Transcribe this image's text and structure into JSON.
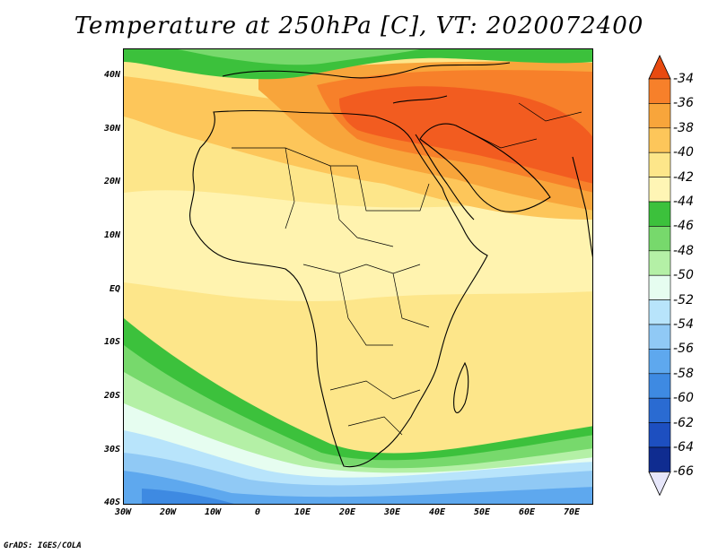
{
  "title": "Temperature at 250hPa [C], VT: 2020072400",
  "credit": "GrADS: IGES/COLA",
  "map": {
    "region": "Africa and Middle East",
    "variable": "temperature_250hPa_C",
    "lat_range": [
      -40,
      45
    ],
    "lon_range": [
      -30,
      75
    ],
    "lat_labels": [
      "40N",
      "30N",
      "20N",
      "10N",
      "EQ",
      "10S",
      "20S",
      "30S",
      "40S"
    ],
    "lon_labels": [
      "30W",
      "20W",
      "10W",
      "0",
      "10E",
      "20E",
      "30E",
      "40E",
      "50E",
      "60E",
      "70E"
    ]
  },
  "colorbar": {
    "levels": [
      "-34",
      "-36",
      "-38",
      "-40",
      "-42",
      "-44",
      "-46",
      "-48",
      "-50",
      "-52",
      "-54",
      "-56",
      "-58",
      "-60",
      "-62",
      "-64",
      "-66"
    ],
    "colors": [
      "#f0501e",
      "#f7802a",
      "#f8a53b",
      "#fdc65a",
      "#fde68a",
      "#fff5b5",
      "#3cc13c",
      "#77d96c",
      "#b4f0a6",
      "#e6fdf0",
      "#b8e4fb",
      "#90c9f5",
      "#5ea8ee",
      "#3e8ae2",
      "#2a6bd2",
      "#1d4fc0",
      "#0f2c90"
    ],
    "top_arrow_color": "#e84a10",
    "bottom_arrow_color": "#e6e6fa"
  }
}
